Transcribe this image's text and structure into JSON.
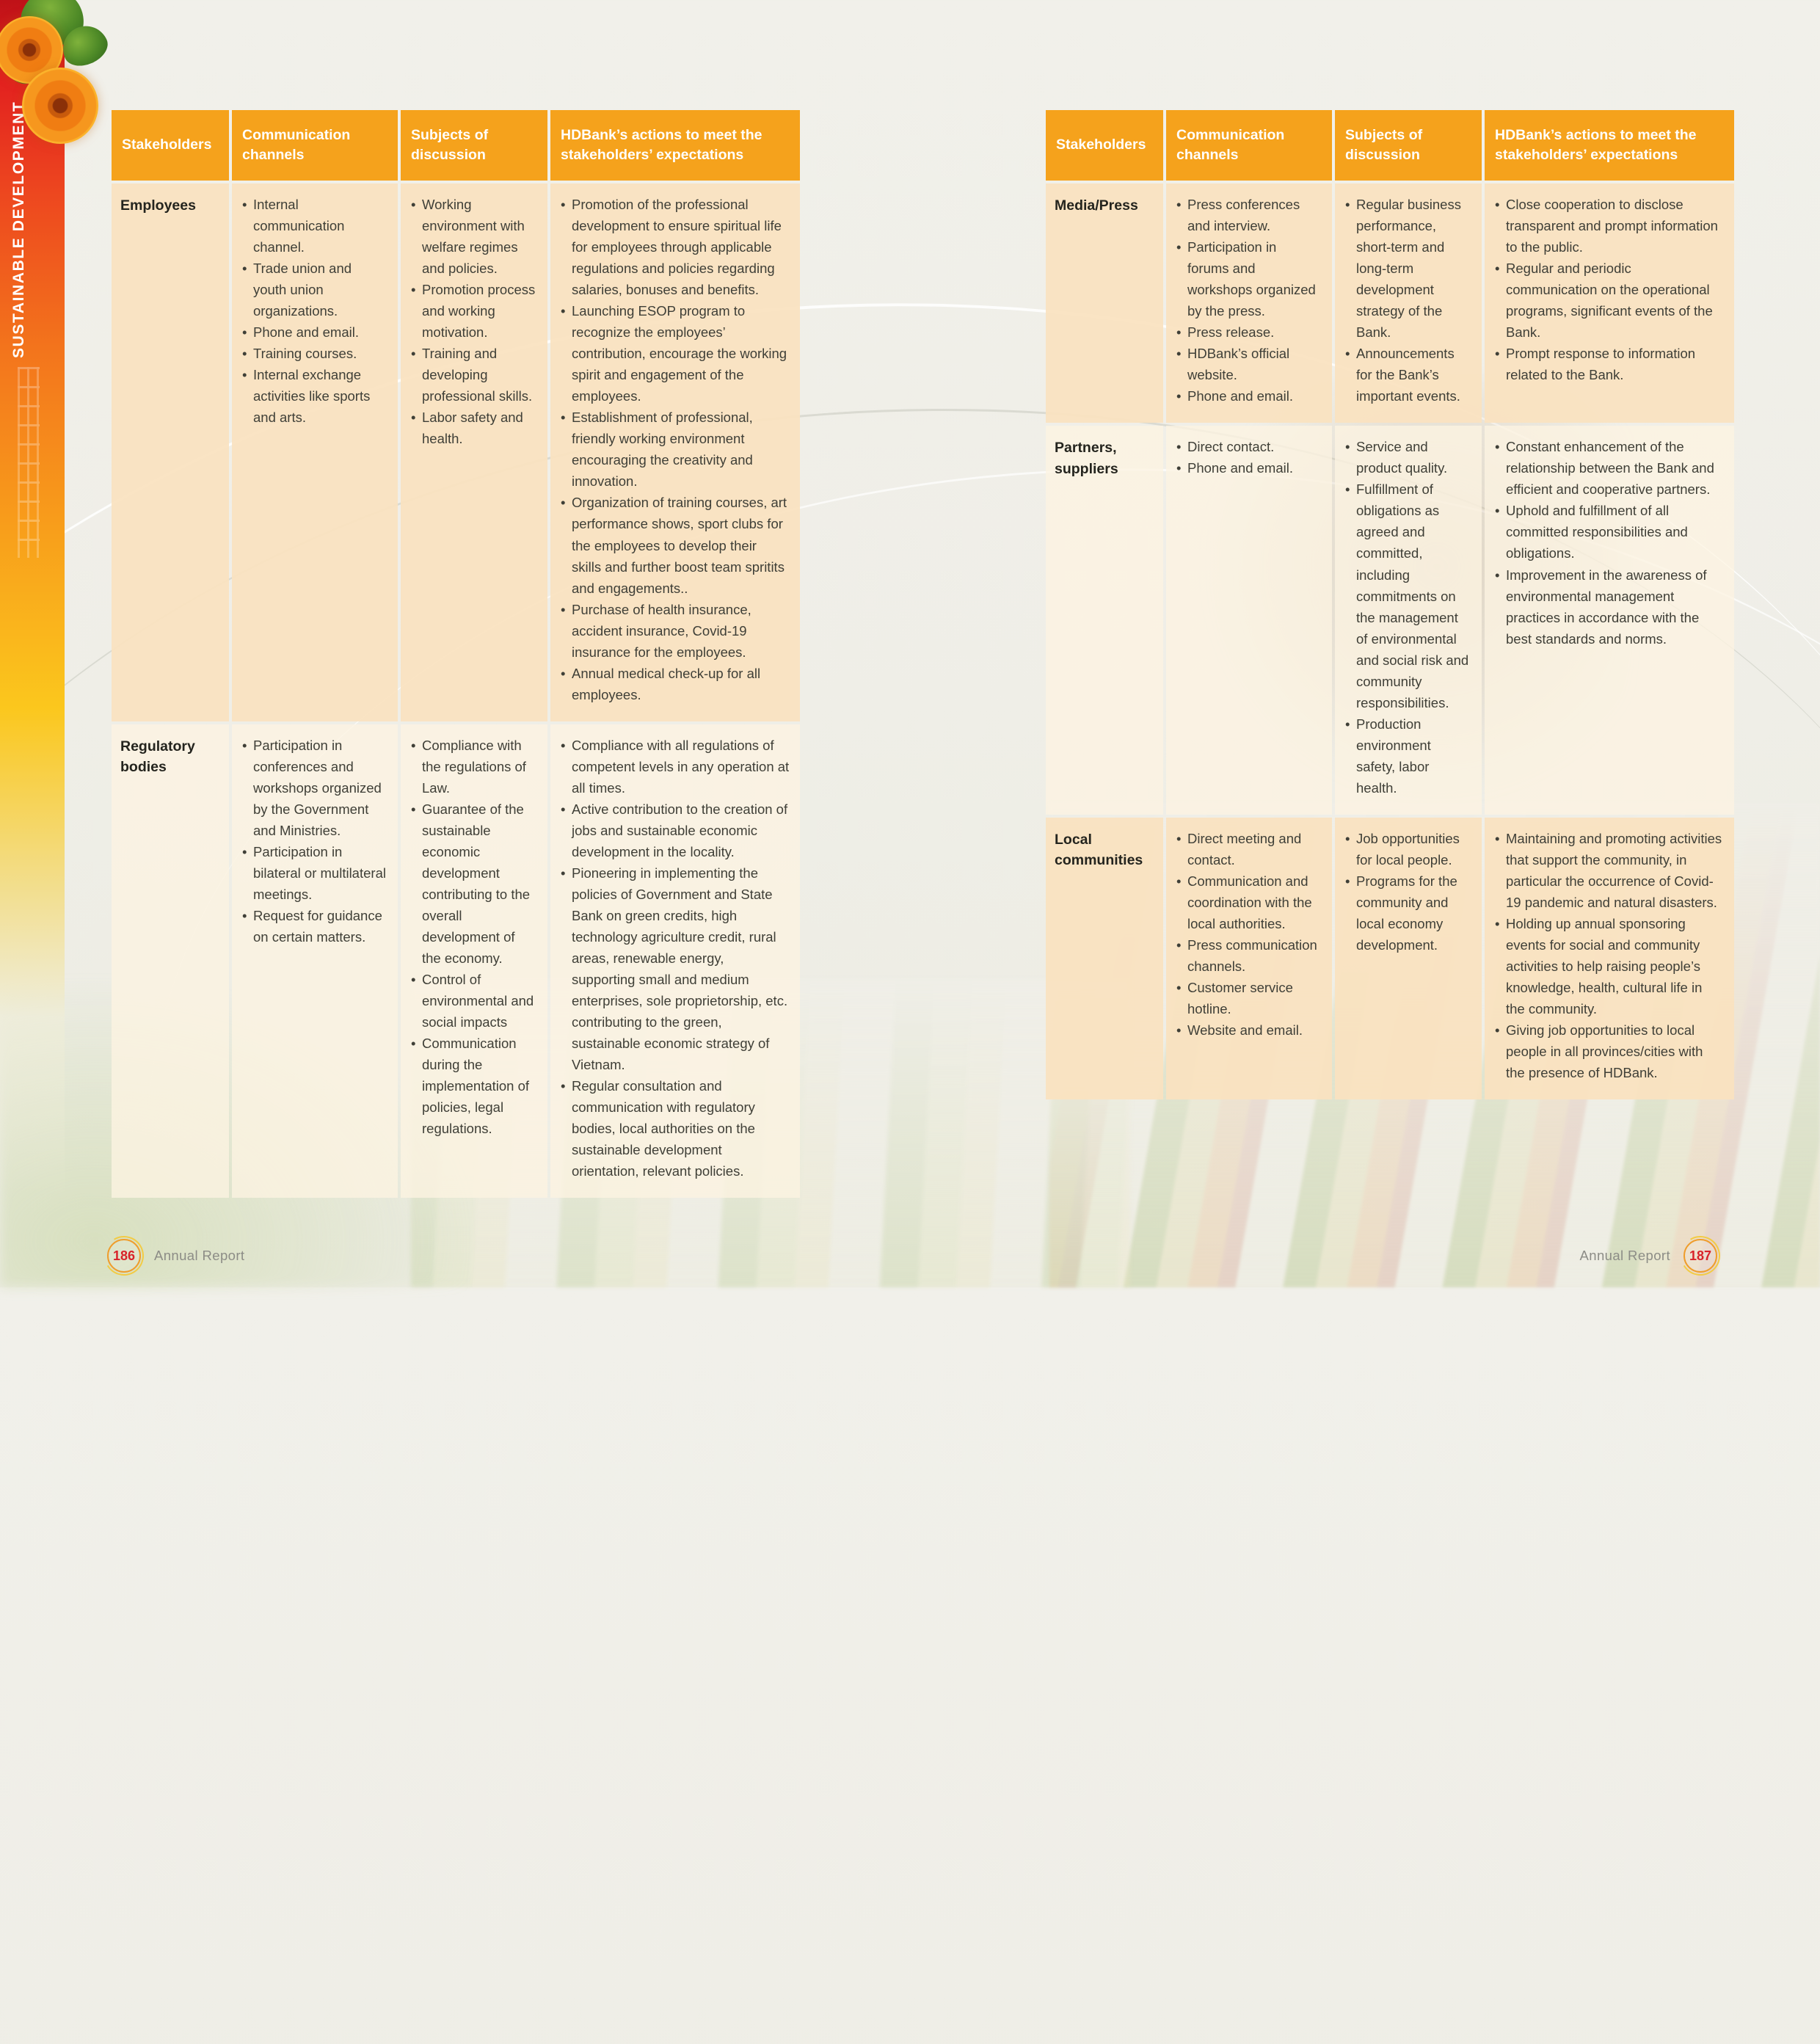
{
  "sidebar": {
    "label": "SUSTAINABLE DEVELOPMENT"
  },
  "footer": {
    "left": {
      "page_number": "186",
      "label": "Annual Report"
    },
    "right": {
      "page_number": "187",
      "label": "Annual Report"
    }
  },
  "colors": {
    "header_bg": "#F5A21C",
    "row_peach": "#FAE2BF",
    "row_cream": "#FCF4E2",
    "body_text": "#3F3F37",
    "page_number_red": "#D8232A"
  },
  "tables": [
    {
      "id": "left",
      "headers": [
        "Stakeholders",
        "Communication channels",
        "Subjects of discussion",
        "HDBank’s actions to meet the stakeholders’ expectations"
      ],
      "rows": [
        {
          "stakeholder": "Employees",
          "channels": [
            "Internal communication channel.",
            "Trade union and youth union organizations.",
            "Phone and email.",
            "Training courses.",
            "Internal exchange activities like sports and arts."
          ],
          "subjects": [
            "Working environment with welfare regimes and policies.",
            "Promotion process and working motivation.",
            "Training and developing professional skills.",
            "Labor safety and health."
          ],
          "actions": [
            "Promotion of the professional development to ensure spiritual life for employees through applicable regulations and policies regarding salaries, bonuses and benefits.",
            "Launching ESOP program to recognize the employees’ contribution, encourage the working spirit and engagement of the employees.",
            "Establishment of professional, friendly working environment encouraging the creativity and innovation.",
            "Organization of training courses, art performance shows, sport clubs for the employees to develop their skills and further boost team spritits and engagements..",
            "Purchase of health insurance, accident insurance, Covid-19 insurance for the employees.",
            "Annual medical check-up for all employees."
          ]
        },
        {
          "stakeholder": "Regulatory bodies",
          "channels": [
            "Participation in conferences and workshops organized by the Government and Ministries.",
            "Participation in bilateral or multilateral meetings.",
            "Request for guidance on certain matters."
          ],
          "subjects": [
            "Compliance with the regulations of Law.",
            "Guarantee of the sustainable economic development contributing to the overall development of the economy.",
            "Control of environmental and social impacts",
            "Communication during the implementation of policies, legal regulations."
          ],
          "actions": [
            "Compliance with all regulations of competent levels in any operation at all times.",
            "Active contribution to the creation of jobs and sustainable economic development in the locality.",
            "Pioneering in implementing the policies of Government and State Bank on green credits, high technology agriculture credit, rural areas, renewable energy, supporting small and medium enterprises, sole proprietorship, etc. contributing to the green, sustainable economic strategy of Vietnam.",
            "Regular consultation and communication with regulatory bodies, local authorities on the sustainable development orientation, relevant policies."
          ]
        }
      ]
    },
    {
      "id": "right",
      "headers": [
        "Stakeholders",
        "Communication channels",
        "Subjects of discussion",
        "HDBank’s actions to meet the stakeholders’ expectations"
      ],
      "rows": [
        {
          "stakeholder": "Media/Press",
          "channels": [
            "Press conferences and interview.",
            "Participation in forums and workshops organized by the press.",
            "Press release.",
            "HDBank’s official website.",
            "Phone and email."
          ],
          "subjects": [
            "Regular business performance, short-term and long-term development strategy of the Bank.",
            "Announcements for the Bank’s important events."
          ],
          "actions": [
            "Close cooperation to disclose transparent and prompt information to the public.",
            "Regular and periodic communication on the operational programs, significant events of the Bank.",
            "Prompt response to information related to the Bank."
          ]
        },
        {
          "stakeholder": "Partners, suppliers",
          "channels": [
            "Direct contact.",
            "Phone and email."
          ],
          "subjects": [
            "Service and product quality.",
            "Fulfillment of obligations as agreed and committed, including commitments on the management of environmental and social risk and community responsibilities.",
            "Production environment safety, labor health."
          ],
          "actions": [
            "Constant enhancement of the relationship between the Bank and efficient and cooperative partners.",
            "Uphold and fulfillment of all committed responsibilities and obligations.",
            "Improvement in the awareness of environmental management practices in accordance with the best standards and norms."
          ]
        },
        {
          "stakeholder": "Local communities",
          "channels": [
            "Direct meeting and contact.",
            "Communication and coordination with the local authorities.",
            "Press communication channels.",
            "Customer service hotline.",
            "Website and email."
          ],
          "subjects": [
            "Job opportunities for local people.",
            "Programs for the community and local economy development."
          ],
          "actions": [
            "Maintaining and promoting activities that support the community, in particular the occurrence of Covid-19 pandemic and natural disasters.",
            "Holding up annual sponsoring events for social and community activities to help raising people’s knowledge, health, cultural life in the community.",
            "Giving job opportunities to local people in all provinces/cities with the presence of HDBank."
          ]
        }
      ]
    }
  ]
}
